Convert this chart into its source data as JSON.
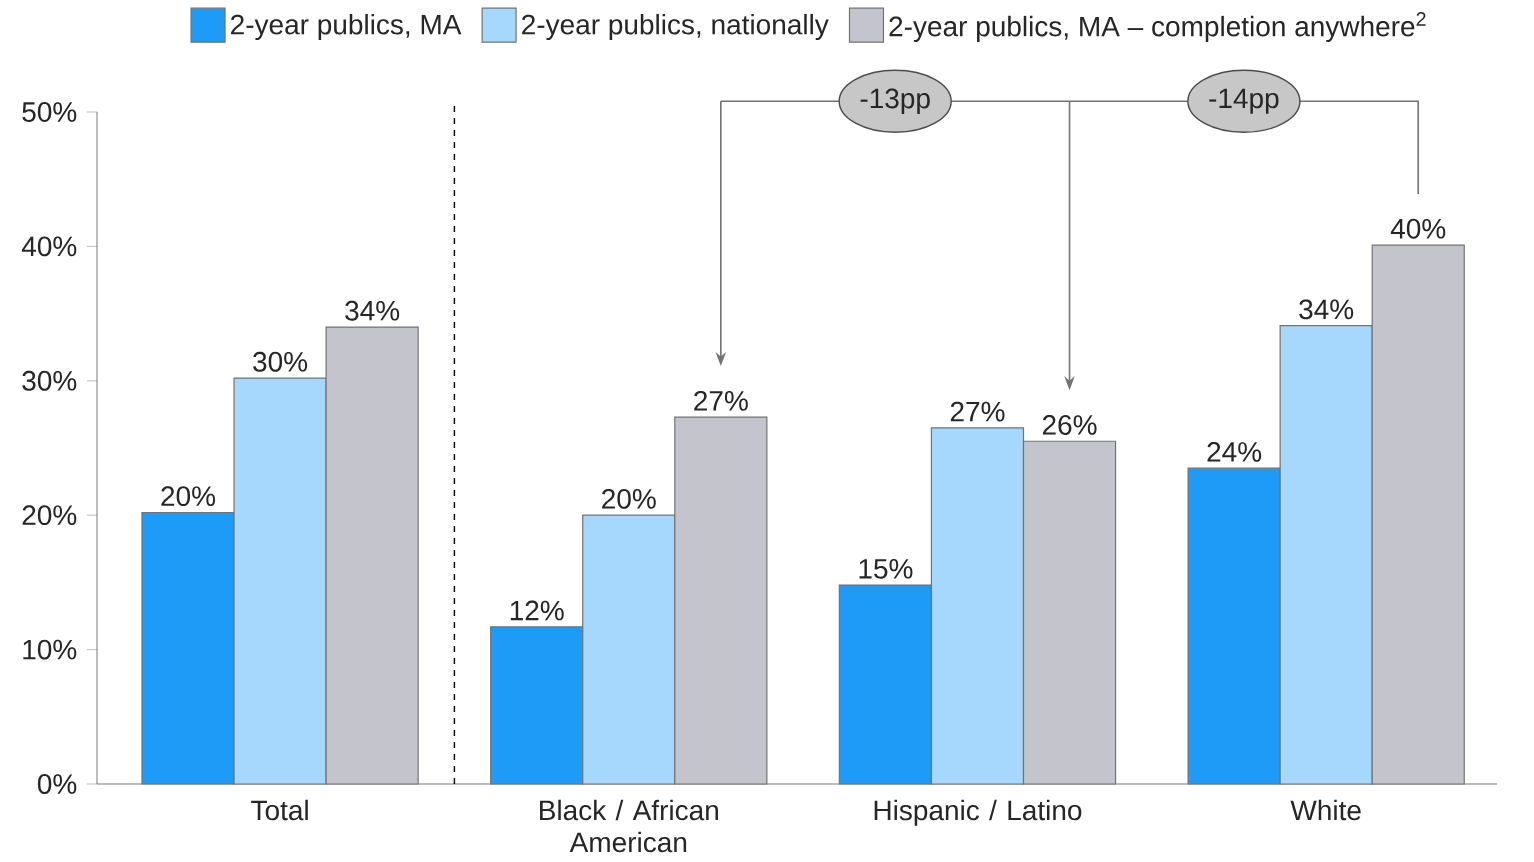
{
  "chart_data": {
    "type": "bar",
    "categories": [
      "Total",
      "Black / African American",
      "Hispanic / Latino",
      "White"
    ],
    "series": [
      {
        "name": "2-year publics, MA",
        "color": "#1e9bf6",
        "values": [
          20.2,
          11.7,
          14.8,
          23.5
        ],
        "value_labels": [
          "20%",
          "12%",
          "15%",
          "24%"
        ]
      },
      {
        "name": "2-year publics, nationally",
        "color": "#a6d8fd",
        "values": [
          30.2,
          20.0,
          26.5,
          34.1
        ],
        "value_labels": [
          "30%",
          "20%",
          "27%",
          "34%"
        ]
      },
      {
        "name": "2-year publics, MA – completion anywhere$^{2}$",
        "color": "#c4c4cc",
        "values": [
          34.0,
          27.3,
          25.5,
          40.1
        ],
        "value_labels": [
          "34%",
          "27%",
          "26%",
          "40%"
        ]
      }
    ],
    "ylim": [
      0,
      50
    ],
    "yticks": [
      {
        "value": 0,
        "label": "0%"
      },
      {
        "value": 10,
        "label": "10%"
      },
      {
        "value": 20,
        "label": "20%"
      },
      {
        "value": 30,
        "label": "30%"
      },
      {
        "value": 40,
        "label": "40%"
      },
      {
        "value": 50,
        "label": "50%"
      }
    ],
    "annotations": [
      "-13pp",
      "-14pp"
    ],
    "legend": "top",
    "grid": false
  }
}
